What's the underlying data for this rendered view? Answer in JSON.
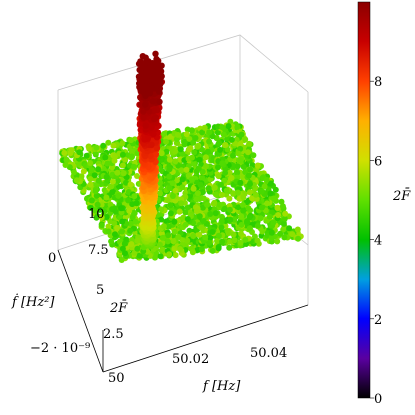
{
  "chart_data": {
    "type": "scatter3d",
    "axes": {
      "x": {
        "label": "f [Hz]",
        "ticks": [
          "50",
          "50.02",
          "50.04"
        ],
        "range": [
          50,
          50.05
        ]
      },
      "y": {
        "label": "ḟ [Hz²]",
        "ticks": [
          "0",
          "−2 · 10⁻⁹"
        ],
        "range": [
          -3e-09,
          2e-10
        ]
      },
      "z": {
        "label": "2F̄",
        "ticks": [
          "2.5",
          "5",
          "7.5",
          "10"
        ],
        "range": [
          0,
          11
        ]
      }
    },
    "colorbar": {
      "label": "2F̄",
      "ticks": [
        "0",
        "2",
        "4",
        "6",
        "8"
      ],
      "range": [
        0,
        10
      ],
      "colormap": [
        "#000000",
        "#5a00a0",
        "#0000ff",
        "#00a0e0",
        "#00c000",
        "#60e000",
        "#d0e000",
        "#ffb000",
        "#ff4000",
        "#c80000",
        "#8c0000"
      ]
    },
    "background_level": 5,
    "peak": {
      "f": 50.01,
      "fdot": -6e-10,
      "max_2F": 11
    },
    "grid": false
  }
}
